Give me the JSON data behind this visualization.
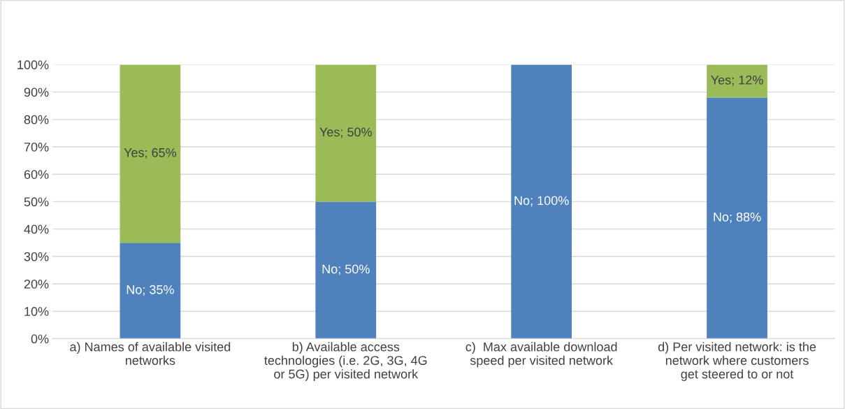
{
  "chart_data": {
    "type": "bar",
    "stacked": true,
    "categories": [
      "a) Names of available visited\nnetworks",
      "b) Available access\ntechnologies (i.e. 2G, 3G, 4G\nor 5G) per visited network",
      "c)  Max available download\nspeed per visited network",
      "d) Per visited network: is the\nnetwork where customers\nget steered to or not"
    ],
    "series": [
      {
        "color": "#4f81bd",
        "values": [
          35,
          50,
          100,
          88
        ],
        "value_labels": [
          "No; 35%",
          "No; 50%",
          "No; 100%",
          "No; 88%"
        ]
      },
      {
        "color": "#9bbb59",
        "values": [
          65,
          50,
          null,
          12
        ],
        "value_labels": [
          "Yes; 65%",
          "Yes; 50%",
          null,
          "Yes; 12%"
        ]
      }
    ],
    "ylim": [
      0,
      100
    ],
    "yticks": [
      {
        "value": 0,
        "label": "0%"
      },
      {
        "value": 10,
        "label": "10%"
      },
      {
        "value": 20,
        "label": "20%"
      },
      {
        "value": 30,
        "label": "30%"
      },
      {
        "value": 40,
        "label": "40%"
      },
      {
        "value": 50,
        "label": "50%"
      },
      {
        "value": 60,
        "label": "60%"
      },
      {
        "value": 70,
        "label": "70%"
      },
      {
        "value": 80,
        "label": "80%"
      },
      {
        "value": 90,
        "label": "90%"
      },
      {
        "value": 100,
        "label": "100%"
      }
    ],
    "grid": "y",
    "legend": false
  }
}
